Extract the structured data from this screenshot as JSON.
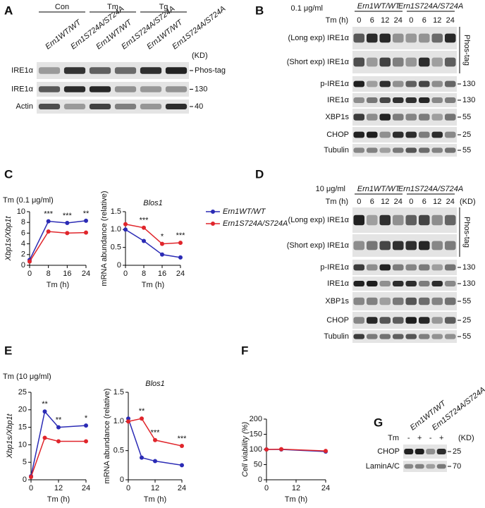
{
  "panels": {
    "A": {
      "letter": "A",
      "groups": [
        "Con",
        "Tm",
        "Tg"
      ],
      "lanes": [
        "Ern1WT/WT",
        "Ern1S724A/S724A",
        "Ern1WT/WT",
        "Ern1S724A/S724A",
        "Ern1WT/WT",
        "Ern1S724A/S724A"
      ],
      "unit": "(KD)",
      "rows": [
        {
          "label": "IRE1α",
          "marker": "Phos-tag"
        },
        {
          "label": "IRE1α",
          "marker": "130"
        },
        {
          "label": "Actin",
          "marker": "40"
        }
      ]
    },
    "B": {
      "letter": "B",
      "dose": "0.1 μg/ml",
      "groups": [
        "Ern1WT/WT",
        "Ern1S724A/S724A"
      ],
      "time_label": "Tm (h)",
      "times": [
        "0",
        "6",
        "12",
        "24",
        "0",
        "6",
        "12",
        "24"
      ],
      "phos_tag": "Phos-tag",
      "rows": [
        {
          "label": "(Long exp) IRE1α"
        },
        {
          "label": "(Short exp) IRE1α"
        },
        {
          "label": "p-IRE1α",
          "marker": "130"
        },
        {
          "label": "IRE1α",
          "marker": "130"
        },
        {
          "label": "XBP1s",
          "marker": "55"
        },
        {
          "label": "CHOP",
          "marker": "25"
        },
        {
          "label": "Tubulin",
          "marker": "55"
        }
      ]
    },
    "D": {
      "letter": "D",
      "dose": "10 μg/ml",
      "groups": [
        "Ern1WT/WT",
        "Ern1S724A/S724A"
      ],
      "time_label": "Tm (h)",
      "times": [
        "0",
        "6",
        "12",
        "24",
        "0",
        "6",
        "12",
        "24"
      ],
      "unit": "(KD)",
      "phos_tag": "Phos-tag",
      "rows": [
        {
          "label": "(Long exp) IRE1α"
        },
        {
          "label": "(Short exp) IRE1α"
        },
        {
          "label": "p-IRE1α",
          "marker": "130"
        },
        {
          "label": "IRE1α",
          "marker": "130"
        },
        {
          "label": "XBP1s",
          "marker": "55"
        },
        {
          "label": "CHOP",
          "marker": "25"
        },
        {
          "label": "Tubulin",
          "marker": "55"
        }
      ]
    },
    "G": {
      "letter": "G",
      "lanes": [
        "Ern1WT/WT",
        "Ern1S724A/S724A"
      ],
      "time_label": "Tm",
      "treat": [
        "-",
        "+",
        "-",
        "+"
      ],
      "unit": "(KD)",
      "rows": [
        {
          "label": "CHOP",
          "marker": "25"
        },
        {
          "label": "LaminA/C",
          "marker": "70"
        }
      ]
    }
  },
  "labels": {
    "C": "C",
    "C_condition": "Tm (0.1 μg/ml)",
    "E": "E",
    "E_condition": "Tm (10 μg/ml)",
    "F": "F"
  },
  "chart_data": [
    {
      "type": "line",
      "y_label": "Xbp1s/Xbp1t",
      "x_label": "Tm (h)",
      "x": [
        0,
        8,
        16,
        24
      ],
      "xlim": [
        0,
        24
      ],
      "xticks": [
        0,
        8,
        16,
        24
      ],
      "ylim": [
        0,
        10
      ],
      "yticks": [
        0,
        2,
        4,
        6,
        8,
        10
      ],
      "series": [
        {
          "color": "#2b2bb5",
          "values": [
            1,
            8.2,
            7.9,
            8.3
          ]
        },
        {
          "color": "#e0252b",
          "values": [
            0.7,
            6.3,
            6.0,
            6.1
          ]
        }
      ],
      "annotations": [
        {
          "x": 8,
          "text": "***"
        },
        {
          "x": 16,
          "text": "***"
        },
        {
          "x": 24,
          "text": "**"
        }
      ]
    },
    {
      "type": "line",
      "title": "Blos1",
      "y_label": "mRNA abundance (relative)",
      "x_label": "Tm (h)",
      "x": [
        0,
        8,
        16,
        24
      ],
      "xlim": [
        0,
        24
      ],
      "xticks": [
        0,
        8,
        16,
        24
      ],
      "ylim": [
        0,
        1.5
      ],
      "yticks": [
        0,
        0.5,
        {
          "value": 1,
          "label": "1.0"
        },
        1.5
      ],
      "series": [
        {
          "name": "Ern1WT/WT",
          "color": "#2b2bb5",
          "values": [
            1.0,
            0.68,
            0.3,
            0.22
          ]
        },
        {
          "name": "Ern1S724A/S724A",
          "color": "#e0252b",
          "values": [
            1.15,
            1.05,
            0.6,
            0.63
          ]
        }
      ],
      "annotations": [
        {
          "x": 8,
          "text": "***"
        },
        {
          "x": 16,
          "text": "*"
        },
        {
          "x": 24,
          "text": "***"
        }
      ]
    },
    {
      "type": "line",
      "y_label": "Xbp1s/Xbp1t",
      "x_label": "Tm (h)",
      "x": [
        0,
        6,
        12,
        24
      ],
      "xlim": [
        0,
        24
      ],
      "xticks": [
        0,
        12,
        24
      ],
      "ylim": [
        0,
        25
      ],
      "yticks": [
        0,
        5,
        10,
        15,
        20,
        25
      ],
      "series": [
        {
          "color": "#2b2bb5",
          "values": [
            1,
            19.5,
            15,
            15.5
          ]
        },
        {
          "color": "#e0252b",
          "values": [
            0.8,
            12,
            11,
            11
          ]
        }
      ],
      "annotations": [
        {
          "x": 6,
          "text": "**"
        },
        {
          "x": 12,
          "text": "**"
        },
        {
          "x": 24,
          "text": "*"
        }
      ]
    },
    {
      "type": "line",
      "title": "Blos1",
      "y_label": "mRNA abundance (relative)",
      "x_label": "Tm (h)",
      "x": [
        0,
        6,
        12,
        24
      ],
      "xlim": [
        0,
        24
      ],
      "xticks": [
        0,
        12,
        24
      ],
      "ylim": [
        0,
        1.5
      ],
      "yticks": [
        0,
        0.5,
        {
          "value": 1,
          "label": "1.0"
        },
        1.5
      ],
      "series": [
        {
          "color": "#2b2bb5",
          "values": [
            1.05,
            0.38,
            0.32,
            0.25
          ]
        },
        {
          "color": "#e0252b",
          "values": [
            1.0,
            1.05,
            0.68,
            0.58
          ]
        }
      ],
      "annotations": [
        {
          "x": 6,
          "text": "**"
        },
        {
          "x": 12,
          "text": "***"
        },
        {
          "x": 24,
          "text": "***"
        }
      ]
    },
    {
      "type": "line",
      "y_label": "Cell viability (%)",
      "x_label": "Tm (h)",
      "x": [
        0,
        6,
        24
      ],
      "xlim": [
        0,
        24
      ],
      "xticks": [
        0,
        12,
        24
      ],
      "ylim": [
        0,
        200
      ],
      "yticks": [
        0,
        50,
        100,
        150,
        200
      ],
      "series": [
        {
          "color": "#2b2bb5",
          "values": [
            100,
            100,
            93
          ]
        },
        {
          "color": "#e0252b",
          "values": [
            100,
            101,
            95
          ]
        }
      ]
    }
  ]
}
